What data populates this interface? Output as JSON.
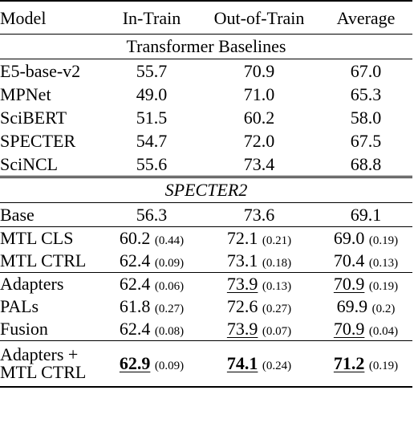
{
  "columns": [
    "Model",
    "In-Train",
    "Out-of-Train",
    "Average"
  ],
  "sections": [
    {
      "title": "Transformer Baselines",
      "rows": [
        {
          "model": "E5-base-v2",
          "in": "55.7",
          "out": "70.9",
          "avg": "67.0"
        },
        {
          "model": "MPNet",
          "in": "49.0",
          "out": "71.0",
          "avg": "65.3"
        },
        {
          "model": "SciBERT",
          "in": "51.5",
          "out": "60.2",
          "avg": "58.0"
        },
        {
          "model": "SPECTER",
          "in": "54.7",
          "out": "72.0",
          "avg": "67.5"
        },
        {
          "model": "SciNCL",
          "in": "55.6",
          "out": "73.4",
          "avg": "68.8"
        }
      ]
    },
    {
      "title": "SPECTER2",
      "rows": [
        {
          "model": "Base",
          "in": "56.3",
          "out": "73.6",
          "avg": "69.1"
        },
        {
          "model": "MTL CLS",
          "in": "60.2",
          "in_sd": "(0.44)",
          "out": "72.1",
          "out_sd": "(0.21)",
          "avg": "69.0",
          "avg_sd": "(0.19)"
        },
        {
          "model": "MTL CTRL",
          "in": "62.4",
          "in_sd": "(0.09)",
          "out": "73.1",
          "out_sd": "(0.18)",
          "avg": "70.4",
          "avg_sd": "(0.13)"
        },
        {
          "model": "Adapters",
          "in": "62.4",
          "in_sd": "(0.06)",
          "out": "73.9",
          "out_sd": "(0.13)",
          "avg": "70.9",
          "avg_sd": "(0.19)"
        },
        {
          "model": "PALs",
          "in": "61.8",
          "in_sd": "(0.27)",
          "out": "72.6",
          "out_sd": "(0.27)",
          "avg": "69.9",
          "avg_sd": "(0.2)"
        },
        {
          "model": "Fusion",
          "in": "62.4",
          "in_sd": "(0.08)",
          "out": "73.9",
          "out_sd": "(0.07)",
          "avg": "70.9",
          "avg_sd": "(0.04)"
        },
        {
          "model_line1": "Adapters +",
          "model_line2": "MTL CTRL",
          "in": "62.9",
          "in_sd": "(0.09)",
          "out": "74.1",
          "out_sd": "(0.24)",
          "avg": "71.2",
          "avg_sd": "(0.19)"
        }
      ]
    }
  ]
}
